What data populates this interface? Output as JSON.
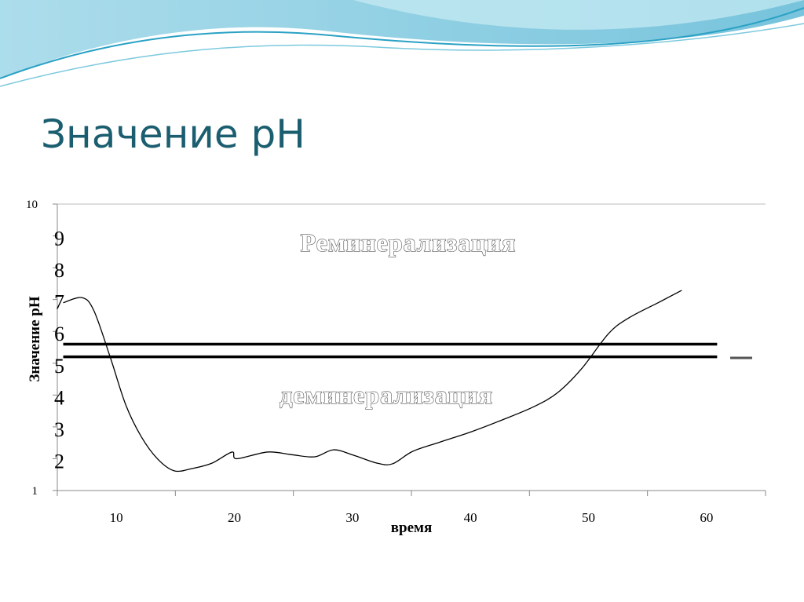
{
  "title": "Значение рН",
  "chart_data": {
    "type": "line",
    "y_label": "Значение рН",
    "x_label": "время",
    "annotations": [
      "Реминерализация",
      "деминерализация"
    ],
    "xlim": [
      5,
      65
    ],
    "xticks": [
      10,
      20,
      30,
      40,
      50,
      60
    ],
    "ylim": [
      1,
      10
    ],
    "yticks": [
      1,
      2,
      3,
      4,
      5,
      6,
      7,
      8,
      9,
      10
    ],
    "series": [
      {
        "color": "#000000",
        "x": [
          5.5,
          7.1,
          8.1,
          9.5,
          10.8,
          12.1,
          13.5,
          14.9,
          16.4,
          18.1,
          19.8,
          20.2,
          22.8,
          24.8,
          26.8,
          28.4,
          30.1,
          32.1,
          33.4,
          35.1,
          37.4,
          40.1,
          42.7,
          45.4,
          47.4,
          49.4,
          51.7,
          53.4,
          56.0,
          57.9
        ],
        "values": [
          6.9,
          7.06,
          6.65,
          5.17,
          3.69,
          2.7,
          1.99,
          1.62,
          1.69,
          1.86,
          2.21,
          2.0,
          2.21,
          2.13,
          2.06,
          2.28,
          2.11,
          1.86,
          1.84,
          2.23,
          2.52,
          2.85,
          3.22,
          3.64,
          4.08,
          4.82,
          5.93,
          6.42,
          6.92,
          7.29
        ]
      }
    ],
    "thresholds": [
      {
        "value": 5.6,
        "x": [
          5.5,
          60.9
        ]
      },
      {
        "value": 5.2,
        "x": [
          5.5,
          60.9
        ]
      }
    ]
  }
}
